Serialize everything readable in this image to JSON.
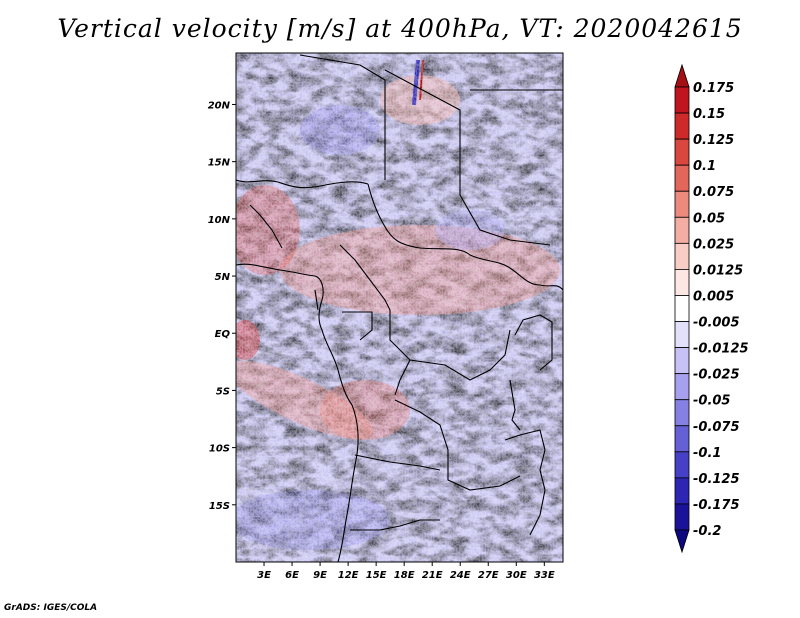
{
  "title": "Vertical velocity [m/s] at 400hPa, VT: 2020042615",
  "footer": "GrADS: IGES/COLA",
  "map": {
    "lat_ticks": [
      "20N",
      "15N",
      "10N",
      "5N",
      "EQ",
      "5S",
      "10S",
      "15S"
    ],
    "lat_values": [
      20,
      15,
      10,
      5,
      0,
      -5,
      -10,
      -15
    ],
    "lon_ticks": [
      "3E",
      "6E",
      "9E",
      "12E",
      "15E",
      "18E",
      "21E",
      "24E",
      "27E",
      "30E",
      "33E"
    ],
    "lon_values": [
      3,
      6,
      9,
      12,
      15,
      18,
      21,
      24,
      27,
      30,
      33
    ],
    "lon_range": [
      0,
      35
    ],
    "lat_range": [
      -20,
      24.5
    ]
  },
  "colorbar": {
    "labels": [
      "0.175",
      "0.15",
      "0.125",
      "0.1",
      "0.075",
      "0.05",
      "0.025",
      "0.0125",
      "0.005",
      "-0.005",
      "-0.0125",
      "-0.025",
      "-0.05",
      "-0.075",
      "-0.1",
      "-0.125",
      "-0.175",
      "-0.2"
    ],
    "colors": [
      "#a50f15",
      "#c0141e",
      "#cf2a2a",
      "#d9473f",
      "#e3665a",
      "#ec8a7e",
      "#f3ada2",
      "#f8cdc5",
      "#fce7e2",
      "#ffffff",
      "#e2e0fb",
      "#c6c2f5",
      "#a6a0ee",
      "#8580e4",
      "#6560d6",
      "#4640c6",
      "#2c26b2",
      "#1a1399",
      "#0d0880"
    ]
  }
}
